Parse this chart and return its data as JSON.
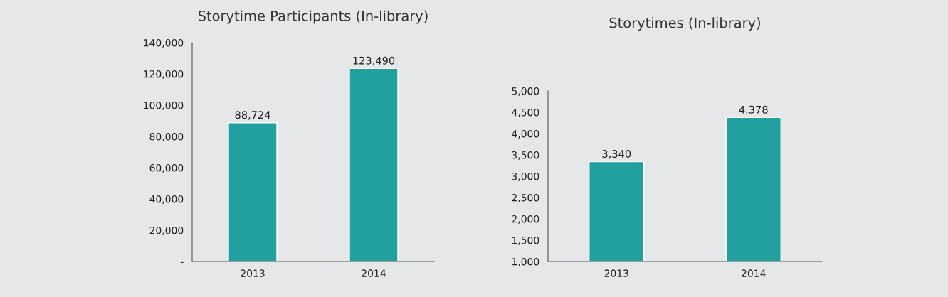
{
  "chart_data": [
    {
      "type": "bar",
      "title": "Storytime Participants (In-library)",
      "categories": [
        "2013",
        "2014"
      ],
      "values": [
        88724,
        123490
      ],
      "value_labels": [
        "88,724",
        "123,490"
      ],
      "color": "#21a09f",
      "ylim": [
        0,
        140000
      ],
      "yticks": [
        {
          "value": 0,
          "label": "-"
        },
        {
          "value": 20000,
          "label": "20,000"
        },
        {
          "value": 40000,
          "label": "40,000"
        },
        {
          "value": 60000,
          "label": "60,000"
        },
        {
          "value": 80000,
          "label": "80,000"
        },
        {
          "value": 100000,
          "label": "100,000"
        },
        {
          "value": 120000,
          "label": "120,000"
        },
        {
          "value": 140000,
          "label": "140,000"
        }
      ],
      "grid": false,
      "legend": false
    },
    {
      "type": "bar",
      "title": "Storytimes (In-library)",
      "categories": [
        "2013",
        "2014"
      ],
      "values": [
        3340,
        4378
      ],
      "value_labels": [
        "3,340",
        "4,378"
      ],
      "color": "#21a09f",
      "ylim": [
        1000,
        5000
      ],
      "yticks": [
        {
          "value": 1000,
          "label": "1,000"
        },
        {
          "value": 1500,
          "label": "1,500"
        },
        {
          "value": 2000,
          "label": "2,000"
        },
        {
          "value": 2500,
          "label": "2,500"
        },
        {
          "value": 3000,
          "label": "3,000"
        },
        {
          "value": 3500,
          "label": "3,500"
        },
        {
          "value": 4000,
          "label": "4,000"
        },
        {
          "value": 4500,
          "label": "4,500"
        },
        {
          "value": 5000,
          "label": "5,000"
        }
      ],
      "grid": false,
      "legend": false
    }
  ]
}
